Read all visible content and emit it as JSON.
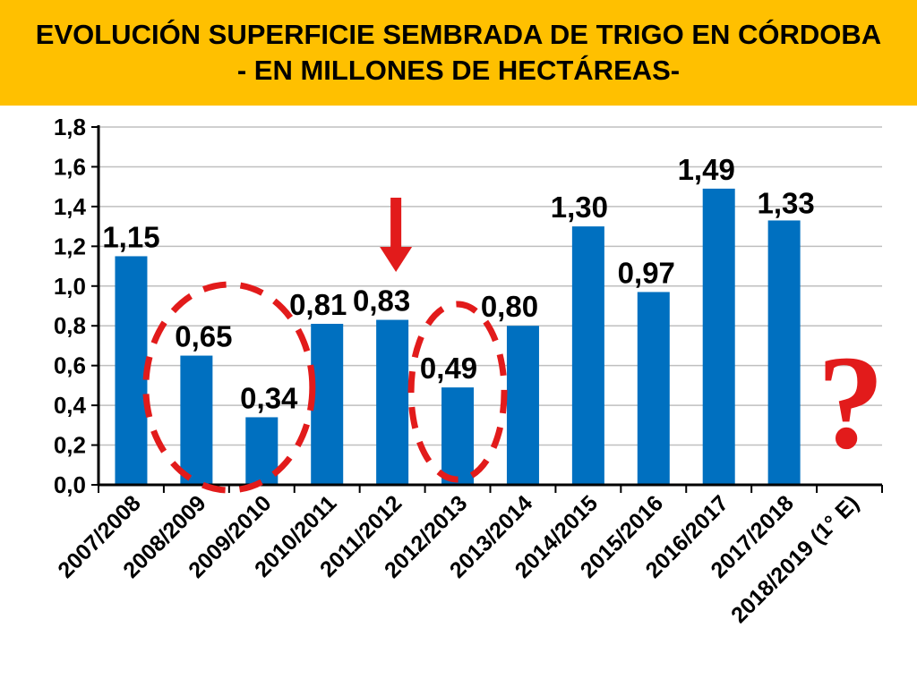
{
  "title": {
    "line1": "EVOLUCIÓN SUPERFICIE SEMBRADA DE TRIGO EN CÓRDOBA",
    "line2": "- EN MILLONES DE HECTÁREAS-"
  },
  "colors": {
    "banner": "#FFC000",
    "bar": "#0070C0",
    "highlight": "#E21B1B"
  },
  "chart_data": {
    "type": "bar",
    "categories": [
      "2007/2008",
      "2008/2009",
      "2009/2010",
      "2010/2011",
      "2011/2012",
      "2012/2013",
      "2013/2014",
      "2014/2015",
      "2015/2016",
      "2016/2017",
      "2017/2018",
      "2018/2019 (1° E)"
    ],
    "values": [
      1.15,
      0.65,
      0.34,
      0.81,
      0.83,
      0.49,
      0.8,
      1.3,
      0.97,
      1.49,
      1.33,
      null
    ],
    "value_labels": [
      "1,15",
      "0,65",
      "0,34",
      "0,81",
      "0,83",
      "0,49",
      "0,80",
      "1,30",
      "0,97",
      "1,49",
      "1,33",
      ""
    ],
    "ylim": [
      0,
      1.8
    ],
    "y_ticks": [
      "0,0",
      "0,2",
      "0,4",
      "0,6",
      "0,8",
      "1,0",
      "1,2",
      "1,4",
      "1,6",
      "1,8"
    ],
    "grid": true,
    "annotations": {
      "question_mark": "?",
      "circled_categories": [
        "2008/2009",
        "2009/2010",
        "2012/2013"
      ],
      "arrow_category": "2011/2012"
    }
  }
}
